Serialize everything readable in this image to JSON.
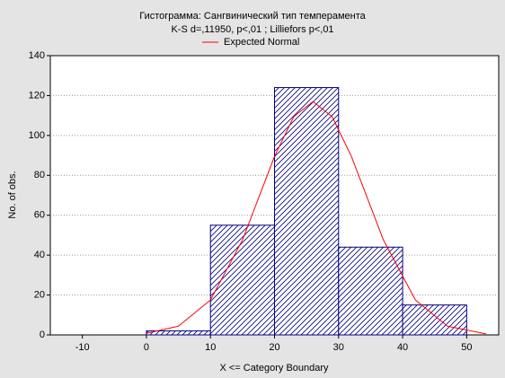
{
  "chart_data": {
    "type": "histogram",
    "title": "Гистограмма: Сангвинический тип темперамента",
    "subtitle": "K-S d=,11950, p<,01 ; Lilliefors p<,01",
    "xlabel": "X <= Category Boundary",
    "ylabel": "No. of obs.",
    "bins": [
      0,
      10,
      20,
      30,
      40,
      50
    ],
    "values": [
      2,
      55,
      124,
      44,
      15
    ],
    "color": "#000080",
    "series": [
      {
        "name": "Expected Normal",
        "color": "#ff0000",
        "x": [
          0,
          5,
          10,
          15,
          20,
          23,
          26,
          29,
          32,
          37,
          42,
          47,
          53
        ],
        "values": [
          0.8,
          4.4,
          17.5,
          47.6,
          89.5,
          109.4,
          117,
          109.4,
          89.5,
          47.6,
          17.5,
          4.4,
          0.5
        ]
      }
    ],
    "xlim": [
      -15,
      55
    ],
    "xticks": [
      -10,
      0,
      10,
      20,
      30,
      40,
      50
    ],
    "ylim": [
      0,
      140
    ],
    "yticks": [
      0,
      20,
      40,
      60,
      80,
      100,
      120,
      140
    ],
    "grid": true
  }
}
